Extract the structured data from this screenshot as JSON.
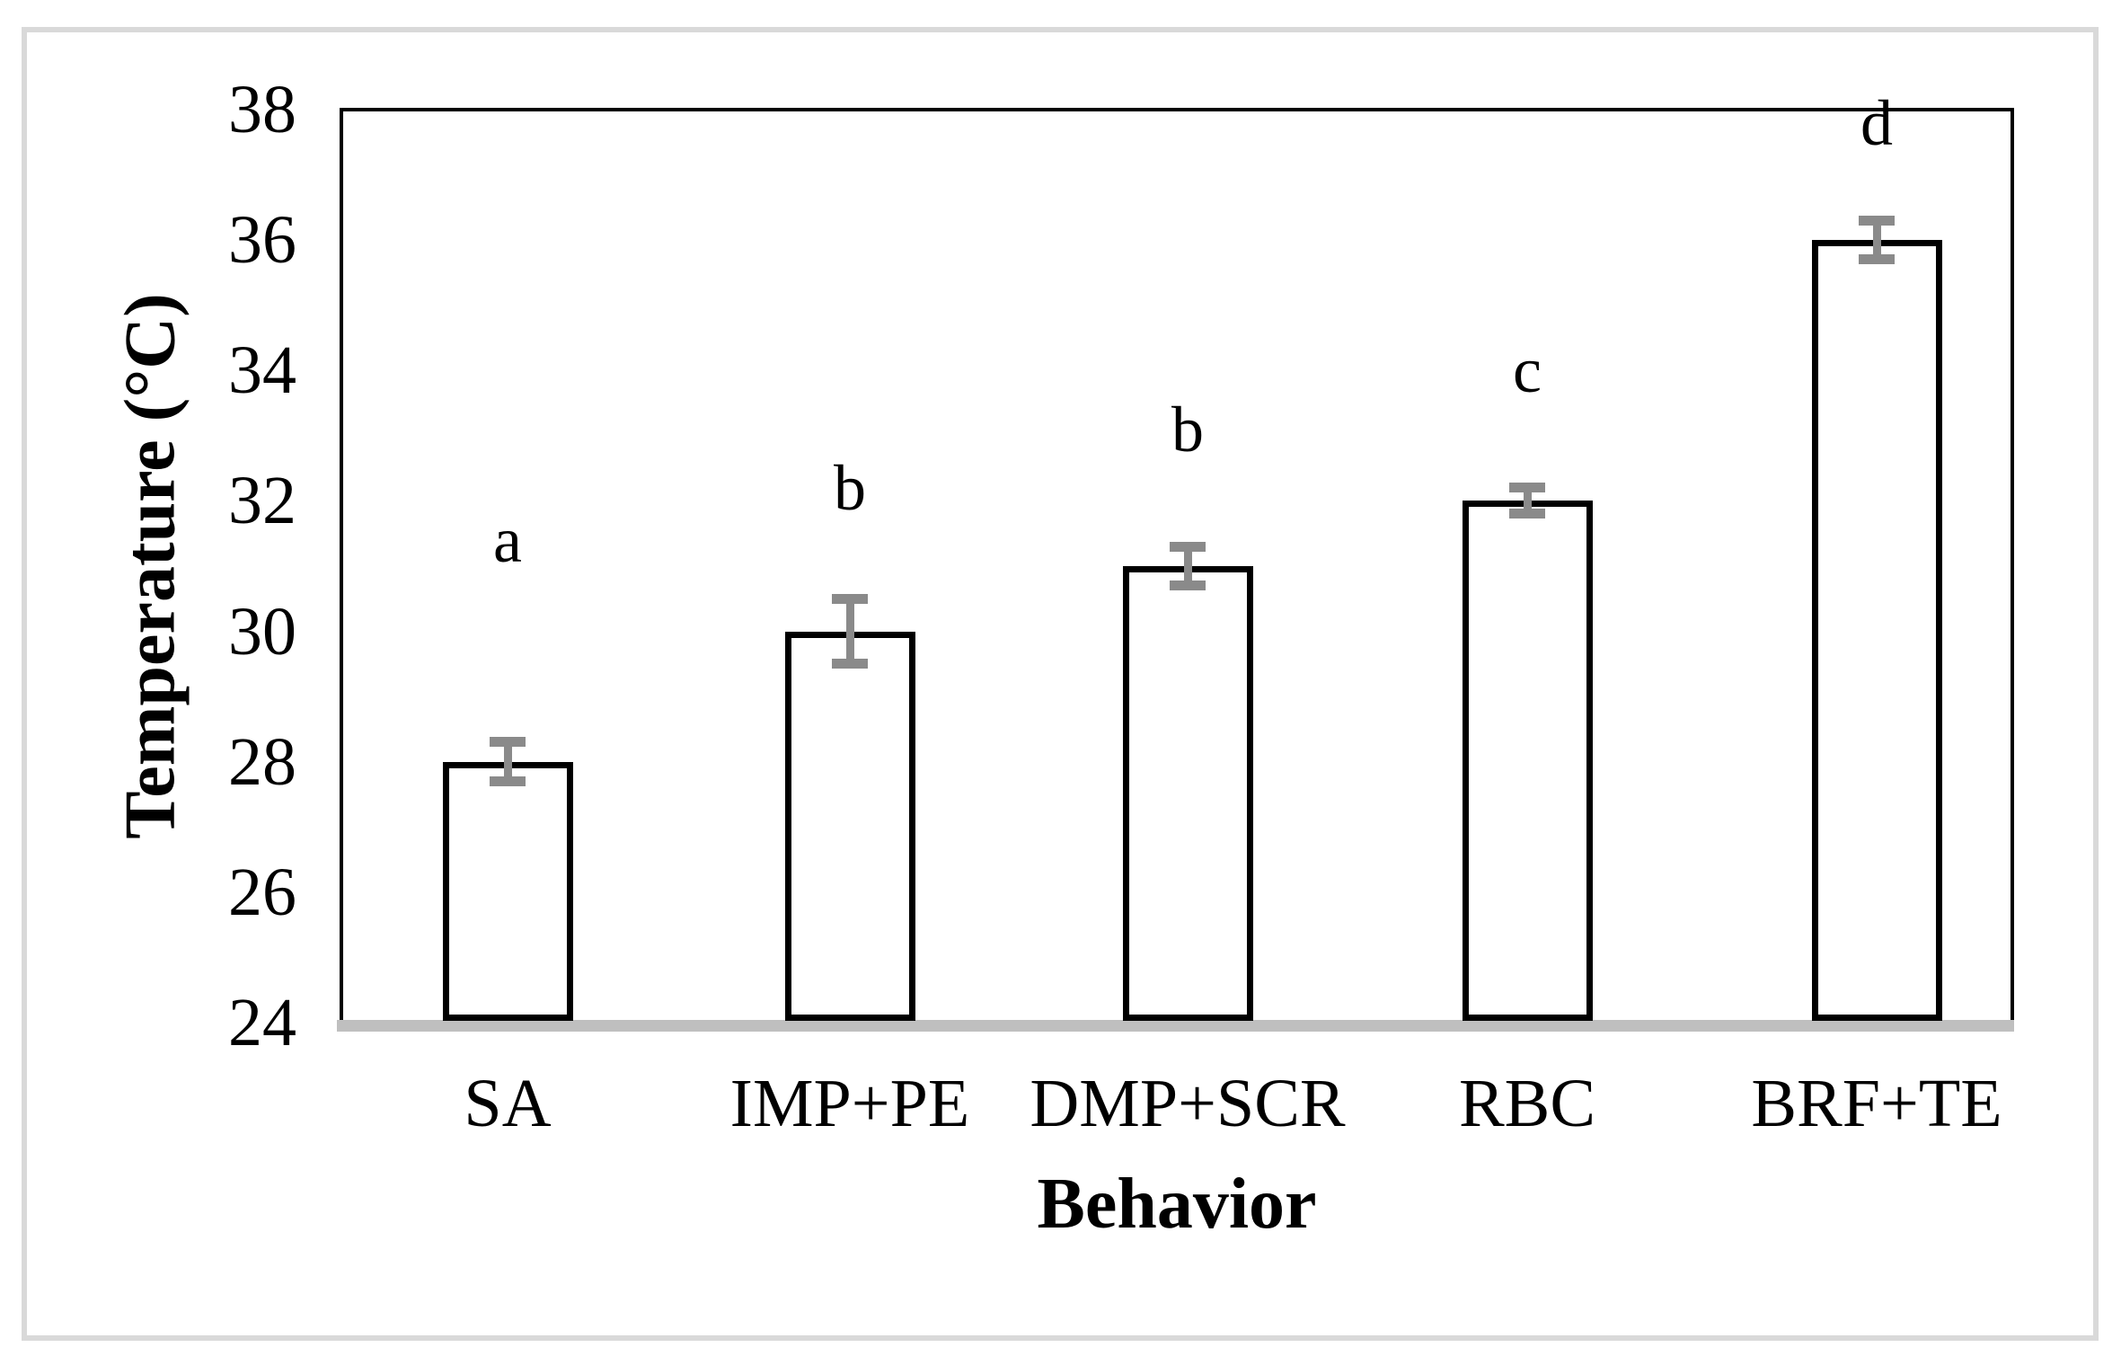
{
  "figure": {
    "background": "#ffffff",
    "frame_color": "#d9d9d9"
  },
  "chart_data": {
    "type": "bar",
    "title": "",
    "categories": [
      "SA",
      "IMP+PE",
      "DMP+SCR",
      "RBC",
      "BRF+TE"
    ],
    "values": [
      28,
      30,
      31,
      32,
      36
    ],
    "error_bars": [
      0.3,
      0.5,
      0.3,
      0.2,
      0.3
    ],
    "significance_letters": [
      "a",
      "b",
      "b",
      "c",
      "d"
    ],
    "significance_letter_y": [
      31.4,
      32.2,
      33.1,
      34.0,
      37.8
    ],
    "xlabel": "Behavior",
    "ylabel": "Temperature (°C)",
    "ylim": [
      24,
      38
    ],
    "yticks": [
      38,
      36,
      34,
      32,
      30,
      28,
      26,
      24
    ],
    "grid": false,
    "legend": false,
    "bar_fill": "#ffffff",
    "bar_stroke": "#000000",
    "error_color": "#8a8a8a",
    "baseline_color": "#bfbfbf"
  }
}
